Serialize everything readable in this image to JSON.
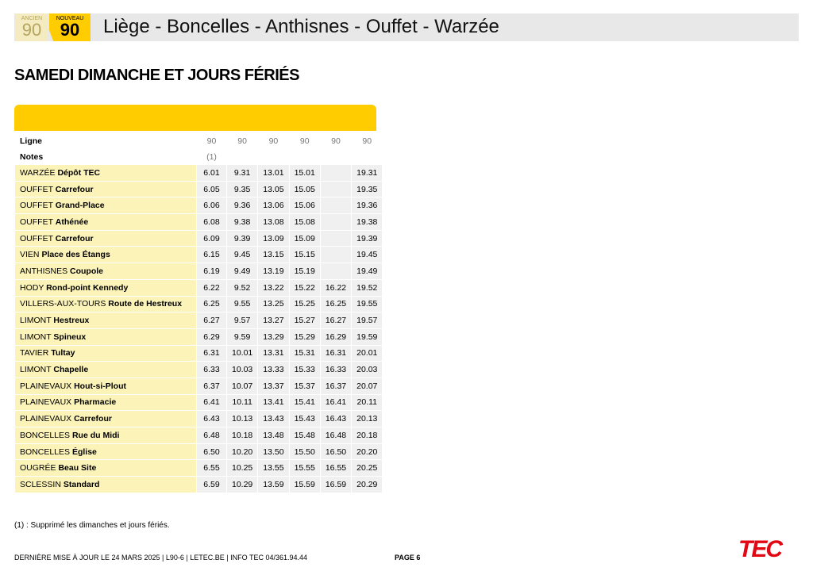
{
  "header": {
    "ancien_label": "ANCIEN",
    "ancien_number": "90",
    "nouveau_label": "NOUVEAU",
    "nouveau_number": "90",
    "title": "Liège - Boncelles - Anthisnes - Ouffet - Warzée"
  },
  "section_title": "SAMEDI DIMANCHE ET JOURS FÉRIÉS",
  "table": {
    "ligne_label": "Ligne",
    "lines": [
      "90",
      "90",
      "90",
      "90",
      "90",
      "90"
    ],
    "notes_label": "Notes",
    "notes": [
      "(1)",
      null,
      null,
      null,
      null,
      null
    ],
    "rows": [
      {
        "town": "WARZÉE",
        "stop": "Dépôt TEC",
        "times": [
          "6.01",
          "9.31",
          "13.01",
          "15.01",
          null,
          "19.31"
        ]
      },
      {
        "town": "OUFFET",
        "stop": "Carrefour",
        "times": [
          "6.05",
          "9.35",
          "13.05",
          "15.05",
          null,
          "19.35"
        ]
      },
      {
        "town": "OUFFET",
        "stop": "Grand-Place",
        "times": [
          "6.06",
          "9.36",
          "13.06",
          "15.06",
          null,
          "19.36"
        ]
      },
      {
        "town": "OUFFET",
        "stop": "Athénée",
        "times": [
          "6.08",
          "9.38",
          "13.08",
          "15.08",
          null,
          "19.38"
        ]
      },
      {
        "town": "OUFFET",
        "stop": "Carrefour",
        "times": [
          "6.09",
          "9.39",
          "13.09",
          "15.09",
          null,
          "19.39"
        ]
      },
      {
        "town": "VIEN",
        "stop": "Place des Étangs",
        "times": [
          "6.15",
          "9.45",
          "13.15",
          "15.15",
          null,
          "19.45"
        ]
      },
      {
        "town": "ANTHISNES",
        "stop": "Coupole",
        "times": [
          "6.19",
          "9.49",
          "13.19",
          "15.19",
          null,
          "19.49"
        ]
      },
      {
        "town": "HODY",
        "stop": "Rond-point Kennedy",
        "times": [
          "6.22",
          "9.52",
          "13.22",
          "15.22",
          "16.22",
          "19.52"
        ]
      },
      {
        "town": "VILLERS-AUX-TOURS",
        "stop": "Route de Hestreux",
        "times": [
          "6.25",
          "9.55",
          "13.25",
          "15.25",
          "16.25",
          "19.55"
        ]
      },
      {
        "town": "LIMONT",
        "stop": "Hestreux",
        "times": [
          "6.27",
          "9.57",
          "13.27",
          "15.27",
          "16.27",
          "19.57"
        ]
      },
      {
        "town": "LIMONT",
        "stop": "Spineux",
        "times": [
          "6.29",
          "9.59",
          "13.29",
          "15.29",
          "16.29",
          "19.59"
        ]
      },
      {
        "town": "TAVIER",
        "stop": "Tultay",
        "times": [
          "6.31",
          "10.01",
          "13.31",
          "15.31",
          "16.31",
          "20.01"
        ]
      },
      {
        "town": "LIMONT",
        "stop": "Chapelle",
        "times": [
          "6.33",
          "10.03",
          "13.33",
          "15.33",
          "16.33",
          "20.03"
        ]
      },
      {
        "town": "PLAINEVAUX",
        "stop": "Hout-si-Plout",
        "times": [
          "6.37",
          "10.07",
          "13.37",
          "15.37",
          "16.37",
          "20.07"
        ]
      },
      {
        "town": "PLAINEVAUX",
        "stop": "Pharmacie",
        "times": [
          "6.41",
          "10.11",
          "13.41",
          "15.41",
          "16.41",
          "20.11"
        ]
      },
      {
        "town": "PLAINEVAUX",
        "stop": "Carrefour",
        "times": [
          "6.43",
          "10.13",
          "13.43",
          "15.43",
          "16.43",
          "20.13"
        ]
      },
      {
        "town": "BONCELLES",
        "stop": "Rue du Midi",
        "times": [
          "6.48",
          "10.18",
          "13.48",
          "15.48",
          "16.48",
          "20.18"
        ]
      },
      {
        "town": "BONCELLES",
        "stop": "Église",
        "times": [
          "6.50",
          "10.20",
          "13.50",
          "15.50",
          "16.50",
          "20.20"
        ]
      },
      {
        "town": "OUGRÉE",
        "stop": "Beau Site",
        "times": [
          "6.55",
          "10.25",
          "13.55",
          "15.55",
          "16.55",
          "20.25"
        ]
      },
      {
        "town": "SCLESSIN",
        "stop": "Standard",
        "times": [
          "6.59",
          "10.29",
          "13.59",
          "15.59",
          "16.59",
          "20.29"
        ]
      }
    ]
  },
  "footnote": "(1) : Supprimé les dimanches et jours fériés.",
  "footer": {
    "info": "DERNIÈRE MISE À JOUR LE 24 MARS 2025 | L90-6 | LETEC.BE | INFO TEC 04/361.94.44",
    "page": "PAGE 6",
    "logo": "TEC"
  }
}
